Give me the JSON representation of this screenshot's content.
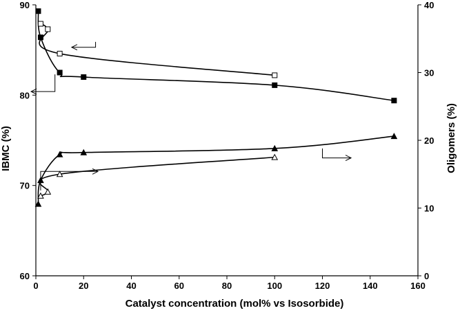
{
  "chart_data": {
    "type": "scatter",
    "title": "",
    "xlabel": "Catalyst concentration (mol% vs Isosorbide)",
    "ylabel_left": "IBMC (%)",
    "ylabel_right": "Oligomers (%)",
    "xlim": [
      0,
      160
    ],
    "ylim_left": [
      60,
      90
    ],
    "ylim_right": [
      0,
      40
    ],
    "x_ticks": [
      0,
      20,
      40,
      60,
      80,
      100,
      120,
      140,
      160
    ],
    "y_left_ticks": [
      60,
      70,
      80,
      90
    ],
    "y_right_ticks": [
      0,
      10,
      20,
      30,
      40
    ],
    "grid": false,
    "legend": "none",
    "series": [
      {
        "axis": "left",
        "marker": "filled-square",
        "color": "#000000",
        "x": [
          1,
          2,
          10,
          20,
          100,
          150
        ],
        "y": [
          89.3,
          86.4,
          82.5,
          82.0,
          81.1,
          79.4
        ]
      },
      {
        "axis": "left",
        "marker": "open-square",
        "color": "#000000",
        "x": [
          2,
          5,
          10,
          100
        ],
        "y": [
          87.9,
          87.3,
          84.6,
          82.2
        ]
      },
      {
        "axis": "right",
        "marker": "filled-triangle",
        "color": "#000000",
        "x": [
          1,
          2,
          10,
          20,
          100,
          150
        ],
        "y": [
          10.6,
          14.1,
          17.9,
          18.2,
          18.8,
          20.6
        ]
      },
      {
        "axis": "right",
        "marker": "open-triangle",
        "color": "#000000",
        "x": [
          2,
          5,
          10,
          100
        ],
        "y": [
          11.8,
          12.4,
          15.0,
          17.5
        ]
      }
    ],
    "annotation_arrows": [
      {
        "points_to": "left",
        "tail": [
          25,
          85.9
        ],
        "elbow": [
          25,
          85.3
        ],
        "end": [
          15,
          85.3
        ]
      },
      {
        "points_to": "left",
        "tail": [
          8,
          82.3
        ],
        "elbow": [
          8,
          80.4
        ],
        "end": [
          -2,
          80.4
        ]
      },
      {
        "points_to": "right",
        "tail": [
          2,
          12.6
        ],
        "elbow": [
          2,
          15.4
        ],
        "end": [
          26,
          15.4
        ]
      },
      {
        "points_to": "right",
        "tail": [
          120,
          18.8
        ],
        "elbow": [
          120,
          17.4
        ],
        "end": [
          132,
          17.4
        ]
      }
    ]
  }
}
